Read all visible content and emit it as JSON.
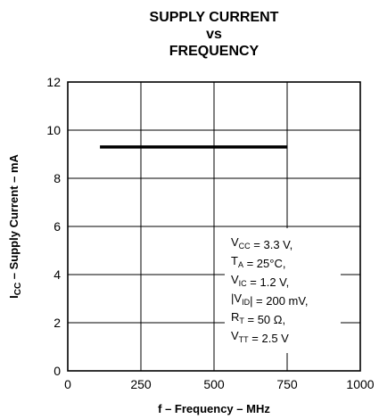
{
  "chart_data": {
    "type": "line",
    "title": [
      "SUPPLY CURRENT",
      "vs",
      "FREQUENCY"
    ],
    "xlabel": "f – Frequency – MHz",
    "ylabel": {
      "main": "I",
      "sub": "CC",
      "rest": " – Supply Current – mA"
    },
    "xlim": [
      0,
      1000
    ],
    "ylim": [
      0,
      12
    ],
    "xticks": [
      0,
      250,
      500,
      750,
      1000
    ],
    "yticks": [
      0,
      2,
      4,
      6,
      8,
      10,
      12
    ],
    "grid": true,
    "series": [
      {
        "x": [
          110,
          750
        ],
        "y": [
          9.3,
          9.3
        ],
        "color": "#000000"
      }
    ],
    "conditions": [
      [
        {
          "t": "V"
        },
        {
          "t": "CC",
          "sub": true
        },
        {
          "t": " = 3.3 V,"
        }
      ],
      [
        {
          "t": "T"
        },
        {
          "t": "A",
          "sub": true
        },
        {
          "t": " = 25°C,"
        }
      ],
      [
        {
          "t": "V"
        },
        {
          "t": "IC",
          "sub": true
        },
        {
          "t": " = 1.2 V,"
        }
      ],
      [
        {
          "t": "|V"
        },
        {
          "t": "ID",
          "sub": true
        },
        {
          "t": "| = 200 mV,"
        }
      ],
      [
        {
          "t": "R"
        },
        {
          "t": "T",
          "sub": true
        },
        {
          "t": " = 50 Ω,"
        }
      ],
      [
        {
          "t": "V"
        },
        {
          "t": "TT",
          "sub": true
        },
        {
          "t": " = 2.5 V"
        }
      ]
    ]
  }
}
